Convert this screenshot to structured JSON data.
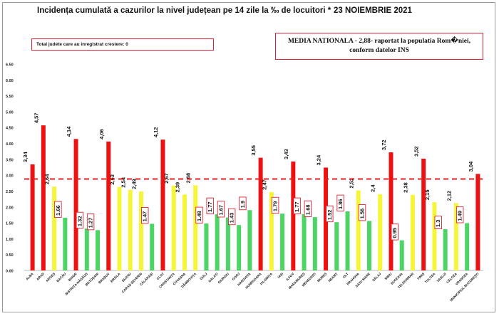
{
  "header": {
    "title": "Incidența cumulată a cazurilor la nivel județean pe 14 zile la ‰ de locuitori *",
    "date": "23 NOIEMBRIE 2021",
    "counties_increase": "Total judete care au inregistrat crestere: 0",
    "national_line1": "MEDIA NATIONALA - 2,88-  raportat la populatia Rom�niei,",
    "national_line2": "conform datelor INS"
  },
  "colors": {
    "red": "#ee1111",
    "yellow": "#f5f53a",
    "green": "#4cd464",
    "reference": "#e02020"
  },
  "chart_data": {
    "type": "bar",
    "title": "Incidența cumulată a cazurilor la nivel județean pe 14 zile la ‰ de locuitori *",
    "xlabel": "",
    "ylabel": "",
    "ylim": [
      0,
      6.5
    ],
    "yticks": [
      "0.00",
      "0.50",
      "1.00",
      "1.50",
      "2.00",
      "2.50",
      "3.00",
      "3.50",
      "4.00",
      "4.50",
      "5.00",
      "5.50",
      "6.00",
      "6.50"
    ],
    "reference_line": 2.88,
    "grid": false,
    "categories": [
      "ALBA",
      "ARAD",
      "ARGEȘ",
      "BACĂU",
      "BIHOR",
      "BISTRIȚA-NĂSĂUD",
      "BOTOȘANI",
      "BRAȘOV",
      "BRĂILA",
      "BUZĂU",
      "CARAȘ-SEVERIN",
      "CĂLĂRAȘI",
      "CLUJ",
      "CONSTANȚA",
      "COVASNA",
      "DÂMBOVIȚA",
      "DOLJ",
      "GALAȚI",
      "GIURGIU",
      "GORJ",
      "HARGHITA",
      "HUNEDOARA",
      "IALOMIȚA",
      "IAȘI",
      "ILFOV",
      "MARAMUREȘ",
      "MEHEDINȚI",
      "MUREȘ",
      "NEAMȚ",
      "OLT",
      "PRAHOVA",
      "SATU MARE",
      "SĂLAJ",
      "SIBIU",
      "SUCEAVA",
      "TELEORMAN",
      "TIMIȘ",
      "TULCEA",
      "VASLUI",
      "VÂLCEA",
      "VRANCEA",
      "MUNICIPIUL BUCUREȘTI"
    ],
    "values": [
      3.34,
      4.57,
      2.64,
      1.66,
      4.14,
      1.32,
      1.27,
      4.06,
      2.63,
      2.54,
      2.49,
      1.47,
      4.12,
      2.67,
      2.39,
      2.68,
      1.48,
      1.77,
      1.67,
      1.43,
      1.9,
      3.55,
      2.47,
      1.79,
      3.43,
      1.77,
      1.68,
      3.24,
      1.52,
      1.86,
      2.52,
      1.56,
      2.4,
      3.72,
      0.95,
      2.38,
      3.52,
      2.15,
      1.3,
      2.12,
      1.49,
      3.04
    ],
    "value_labels": [
      "3,34",
      "4,57",
      "2,64",
      "1.66",
      "4,14",
      "1.32",
      "1.27",
      "4,06",
      "2,63",
      "2,54",
      "2,49",
      "1.47",
      "4,12",
      "2,67",
      "2,39",
      "2,68",
      "1.48",
      "1.77",
      "1.67",
      "1.43",
      "1.9",
      "3,55",
      "2,47",
      "1.79",
      "3,43",
      "1.77",
      "1.68",
      "3,24",
      "1.52",
      "1.86",
      "2,52",
      "1.56",
      "2,4",
      "3,72",
      "0.95",
      "2,38",
      "3,52",
      "2,15",
      "1.3",
      "2,12",
      "1.49",
      "3,04"
    ],
    "bar_colors": [
      "red",
      "red",
      "yellow",
      "green",
      "red",
      "green",
      "green",
      "red",
      "yellow",
      "yellow",
      "yellow",
      "green",
      "red",
      "yellow",
      "yellow",
      "yellow",
      "green",
      "green",
      "green",
      "green",
      "green",
      "red",
      "yellow",
      "green",
      "red",
      "green",
      "green",
      "red",
      "green",
      "green",
      "yellow",
      "green",
      "yellow",
      "red",
      "green",
      "yellow",
      "red",
      "yellow",
      "green",
      "yellow",
      "green",
      "red"
    ]
  }
}
